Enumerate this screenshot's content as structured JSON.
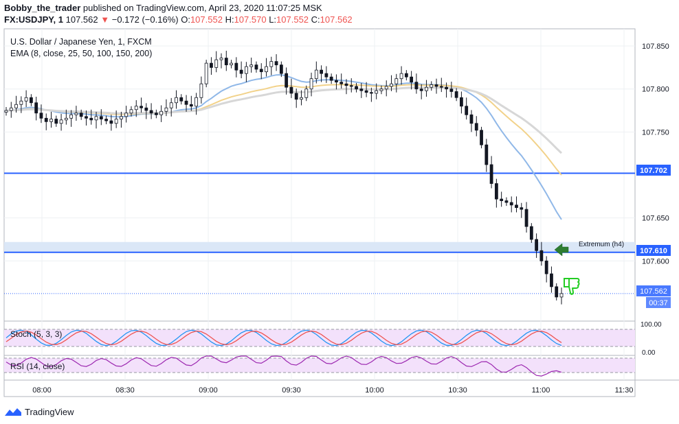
{
  "header": {
    "author": "Bobby_the_trader",
    "published_text": "published on TradingView.com, April 23, 2020 11:07:25 MSK",
    "symbol": "FX:USDJPY, 1",
    "last": "107.562",
    "change": "−0.172 (−0.16%)",
    "o_label": "O:",
    "o": "107.552",
    "h_label": "H:",
    "h": "107.570",
    "l_label": "L:",
    "l": "107.552",
    "c_label": "C:",
    "c": "107.562"
  },
  "legend": {
    "title": "U.S. Dollar / Japanese Yen, 1, FXCM",
    "ema": "EMA (8, close, 25, 50, 100, 150, 200)"
  },
  "stoch_label": "Stoch (5, 3, 3)",
  "rsi_label": "RSI (14, close)",
  "annotation": "Extremum (h4)",
  "countdown": "00:37",
  "footer_brand": "TradingView",
  "colors": {
    "up": "#ffffff",
    "down": "#131722",
    "hline": "#2962ff",
    "zone": "#dbe7f7",
    "ema_blue": "#90b8e8",
    "ema_gold": "#f2d28a",
    "ema_grey": "#d7d7d7",
    "stoch_k": "#2196f3",
    "stoch_d": "#ef5350",
    "rsi": "#9c27b0",
    "arrow": "#2e7d32",
    "thumb": "#22cc22"
  },
  "chart_data": {
    "type": "candlestick",
    "price_axis": {
      "min": 107.53,
      "max": 107.87,
      "ticks": [
        "107.850",
        "107.800",
        "107.750",
        "107.650",
        "107.600"
      ]
    },
    "time_axis": {
      "ticks": [
        "08:00",
        "08:30",
        "09:00",
        "09:30",
        "10:00",
        "10:30",
        "11:00",
        "11:30"
      ]
    },
    "price_labels": {
      "h1": "107.702",
      "h2": "107.610",
      "last": "107.562"
    },
    "levels": [
      107.702,
      107.61
    ],
    "zone": [
      107.61,
      107.622
    ],
    "stoch_axis": [
      "100.00",
      "0.00"
    ],
    "closes": [
      107.775,
      107.778,
      107.782,
      107.786,
      107.79,
      107.784,
      107.772,
      107.766,
      107.762,
      107.765,
      107.76,
      107.764,
      107.766,
      107.77,
      107.772,
      107.768,
      107.766,
      107.764,
      107.768,
      107.765,
      107.763,
      107.76,
      107.765,
      107.768,
      107.772,
      107.776,
      107.78,
      107.778,
      107.775,
      107.772,
      107.77,
      107.774,
      107.778,
      107.784,
      107.79,
      107.786,
      107.782,
      107.78,
      107.79,
      107.806,
      107.83,
      107.825,
      107.834,
      107.836,
      107.828,
      107.83,
      107.822,
      107.818,
      107.826,
      107.828,
      107.823,
      107.82,
      107.826,
      107.832,
      107.828,
      107.818,
      107.802,
      107.795,
      107.788,
      107.79,
      107.8,
      107.812,
      107.822,
      107.818,
      107.814,
      107.81,
      107.808,
      107.806,
      107.804,
      107.803,
      107.8,
      107.798,
      107.796,
      107.795,
      107.798,
      107.8,
      107.803,
      107.806,
      107.812,
      107.818,
      107.814,
      107.808,
      107.8,
      107.798,
      107.802,
      107.805,
      107.803,
      107.802,
      107.8,
      107.797,
      107.79,
      107.78,
      107.77,
      107.76,
      107.752,
      107.735,
      107.712,
      107.69,
      107.672,
      107.67,
      107.668,
      107.665,
      107.662,
      107.66,
      107.64,
      107.625,
      107.612,
      107.6,
      107.585,
      107.57,
      107.558,
      107.562
    ]
  }
}
